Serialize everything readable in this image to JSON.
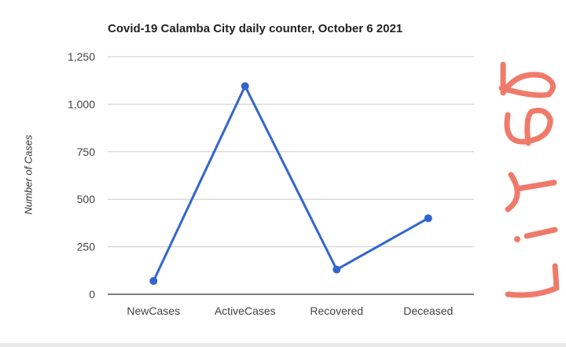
{
  "chart_data": {
    "type": "line",
    "title": "Covid-19 Calamba City daily counter, October 6 2021",
    "xlabel": "",
    "ylabel": "Number of Cases",
    "categories": [
      "NewCases",
      "ActiveCases",
      "Recovered",
      "Deceased"
    ],
    "series": [
      {
        "values": [
          70,
          1095,
          130,
          400
        ]
      }
    ],
    "ylim": [
      0,
      1250
    ],
    "yticks": [
      0,
      250,
      500,
      750,
      1000,
      1250
    ],
    "ytick_labels": [
      "0",
      "250",
      "500",
      "750",
      "1,000",
      "1,250"
    ],
    "grid": true,
    "legend": "none",
    "colors": {
      "line": "#3366cc",
      "grid": "#cccccc",
      "baseline": "#333333"
    }
  },
  "annotation": {
    "text": "Line",
    "color": "#f07a6a"
  }
}
